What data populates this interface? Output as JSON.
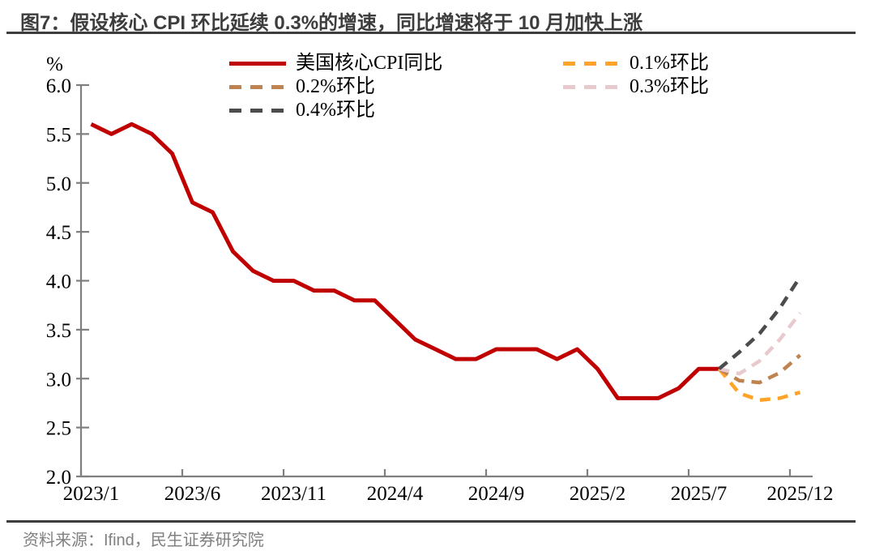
{
  "title": "图7：假设核心 CPI 环比延续 0.3%的增速，同比增速将于 10 月加快上涨",
  "source_note": "资料来源：Ifind，民生证券研究院",
  "colors": {
    "actual_line": "#C00000",
    "mom_0_1": "#FFA329",
    "mom_0_2": "#BF8350",
    "mom_0_3": "#E7C9CE",
    "mom_0_4": "#4C4C4C",
    "axis": "#7f7f7f",
    "title_text": "#3d3d3d",
    "footer_text": "#808080"
  },
  "legend": {
    "items": [
      {
        "label": "美国核心CPI同比",
        "color": "#C00000",
        "style": "solid"
      },
      {
        "label": "0.1%环比",
        "color": "#FFA329",
        "style": "dashed"
      },
      {
        "label": "0.2%环比",
        "color": "#BF8350",
        "style": "dashed"
      },
      {
        "label": "0.3%环比",
        "color": "#E7C9CE",
        "style": "dashed"
      },
      {
        "label": "0.4%环比",
        "color": "#4C4C4C",
        "style": "dashed"
      }
    ]
  },
  "chart_data": {
    "type": "line",
    "unit_label": "%",
    "ylim": [
      2.0,
      6.0
    ],
    "y_ticks": [
      "6.0",
      "5.5",
      "5.0",
      "4.5",
      "4.0",
      "3.5",
      "3.0",
      "2.5",
      "2.0"
    ],
    "x_tick_step": 5,
    "x_ticklabels_visible": [
      "2023/1",
      "2023/6",
      "2023/11",
      "2024/4",
      "2024/9",
      "2025/2",
      "2025/7",
      "2025/12"
    ],
    "grid": false,
    "legend_position": "top",
    "x": [
      "2023/1",
      "2023/2",
      "2023/3",
      "2023/4",
      "2023/5",
      "2023/6",
      "2023/7",
      "2023/8",
      "2023/9",
      "2023/10",
      "2023/11",
      "2023/12",
      "2024/1",
      "2024/2",
      "2024/3",
      "2024/4",
      "2024/5",
      "2024/6",
      "2024/7",
      "2024/8",
      "2024/9",
      "2024/10",
      "2024/11",
      "2024/12",
      "2025/1",
      "2025/2",
      "2025/3",
      "2025/4",
      "2025/5",
      "2025/6",
      "2025/7",
      "2025/8",
      "2025/9",
      "2025/10",
      "2025/11",
      "2025/12"
    ],
    "series": [
      {
        "name": "美国核心CPI同比",
        "color": "#C00000",
        "dashed": false,
        "values": [
          5.6,
          5.5,
          5.6,
          5.5,
          5.3,
          4.8,
          4.7,
          4.3,
          4.1,
          4.0,
          4.0,
          3.9,
          3.9,
          3.8,
          3.8,
          3.6,
          3.4,
          3.3,
          3.2,
          3.2,
          3.3,
          3.3,
          3.3,
          3.2,
          3.3,
          3.1,
          2.8,
          2.8,
          2.8,
          2.9,
          3.1,
          3.1,
          null,
          null,
          null,
          null
        ]
      },
      {
        "name": "0.1%环比",
        "color": "#FFA329",
        "dashed": true,
        "values": [
          null,
          null,
          null,
          null,
          null,
          null,
          null,
          null,
          null,
          null,
          null,
          null,
          null,
          null,
          null,
          null,
          null,
          null,
          null,
          null,
          null,
          null,
          null,
          null,
          null,
          null,
          null,
          null,
          null,
          null,
          null,
          3.1,
          2.85,
          2.78,
          2.8,
          2.86
        ]
      },
      {
        "name": "0.2%环比",
        "color": "#BF8350",
        "dashed": true,
        "values": [
          null,
          null,
          null,
          null,
          null,
          null,
          null,
          null,
          null,
          null,
          null,
          null,
          null,
          null,
          null,
          null,
          null,
          null,
          null,
          null,
          null,
          null,
          null,
          null,
          null,
          null,
          null,
          null,
          null,
          null,
          null,
          3.1,
          2.98,
          2.96,
          3.06,
          3.24
        ]
      },
      {
        "name": "0.3%环比",
        "color": "#E7C9CE",
        "dashed": true,
        "values": [
          null,
          null,
          null,
          null,
          null,
          null,
          null,
          null,
          null,
          null,
          null,
          null,
          null,
          null,
          null,
          null,
          null,
          null,
          null,
          null,
          null,
          null,
          null,
          null,
          null,
          null,
          null,
          null,
          null,
          null,
          null,
          3.1,
          3.05,
          3.18,
          3.4,
          3.67
        ]
      },
      {
        "name": "0.4%环比",
        "color": "#4C4C4C",
        "dashed": true,
        "values": [
          null,
          null,
          null,
          null,
          null,
          null,
          null,
          null,
          null,
          null,
          null,
          null,
          null,
          null,
          null,
          null,
          null,
          null,
          null,
          null,
          null,
          null,
          null,
          null,
          null,
          null,
          null,
          null,
          null,
          null,
          null,
          3.1,
          3.27,
          3.46,
          3.72,
          4.04
        ]
      }
    ]
  }
}
